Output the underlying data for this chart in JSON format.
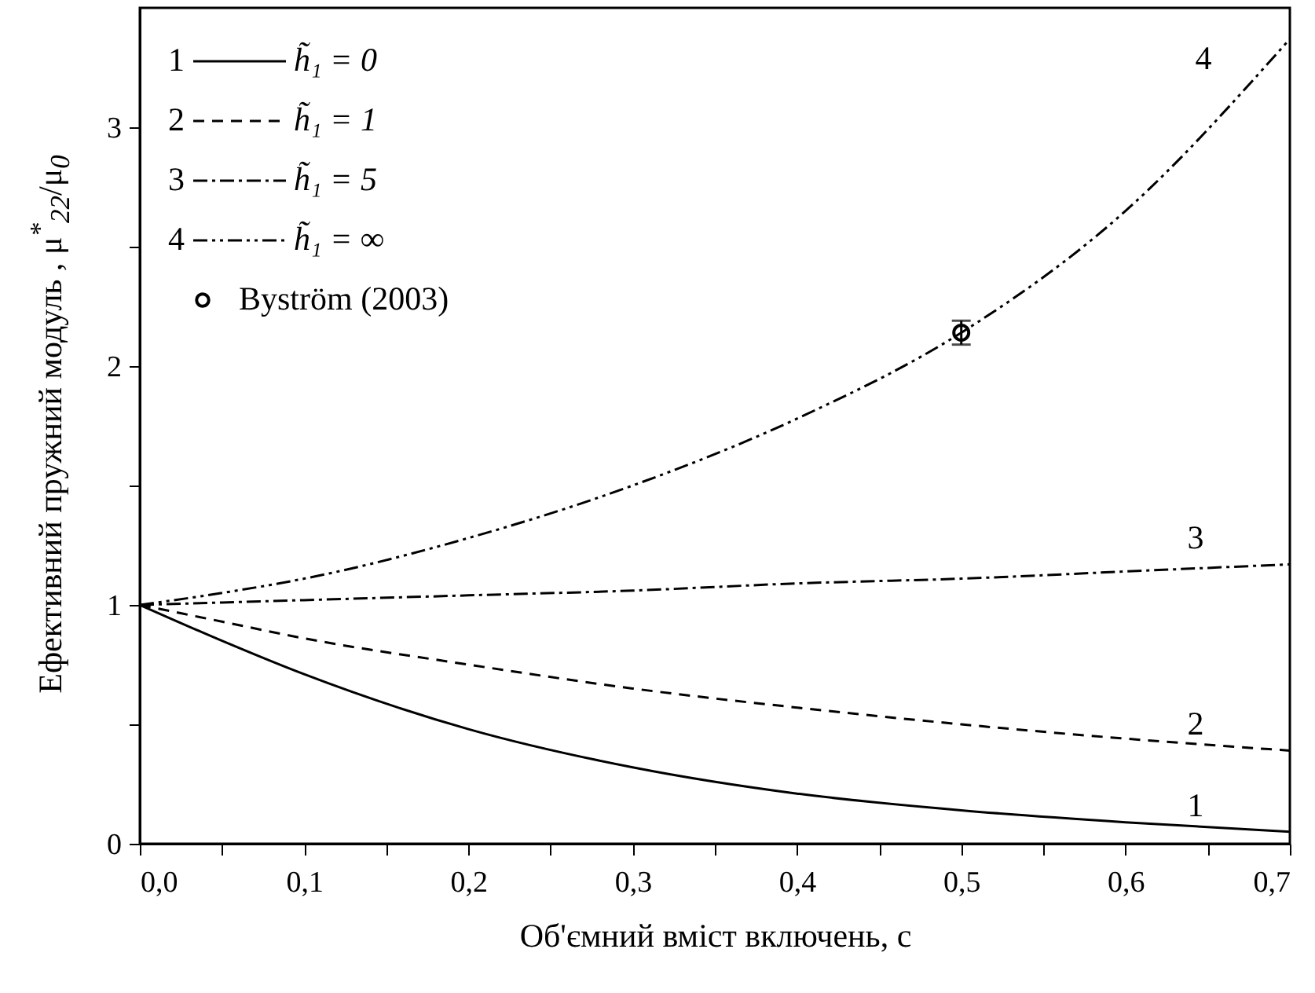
{
  "chart_data": {
    "type": "line",
    "xlabel": "Об'ємний вміст включень, c",
    "ylabel": "Ефективний пружний модуль , μ$^{*}$$_{22}$/μ$_{0}$",
    "x": [
      0,
      0.05,
      0.1,
      0.2,
      0.3,
      0.4,
      0.5,
      0.6,
      0.7
    ],
    "series": [
      {
        "name": "h̃₁ = 0",
        "color": "#000000",
        "line_style": "solid",
        "values": [
          1,
          0.85,
          0.71,
          0.48,
          0.32,
          0.21,
          0.14,
          0.09,
          0.05
        ]
      },
      {
        "name": "h̃₁ = 1",
        "color": "#000000",
        "line_style": "dashed",
        "values": [
          1,
          0.93,
          0.86,
          0.75,
          0.65,
          0.57,
          0.5,
          0.44,
          0.39
        ]
      },
      {
        "name": "h̃₁ = 5",
        "color": "#000000",
        "line_style": "dashdot",
        "values": [
          1,
          1.01,
          1.02,
          1.04,
          1.06,
          1.09,
          1.11,
          1.14,
          1.17
        ]
      },
      {
        "name": "h̃₁ = ∞",
        "color": "#000000",
        "line_style": "dashdotdot",
        "values": [
          1,
          1.05,
          1.11,
          1.28,
          1.5,
          1.78,
          2.14,
          2.65,
          3.37
        ]
      },
      {
        "name": "Byström (2003)",
        "type": "scatter",
        "marker": "circle",
        "color": "#000000",
        "x": [
          0.5
        ],
        "values": [
          2.14
        ],
        "errors": [
          0.05
        ]
      }
    ],
    "annotations": [
      "1",
      "2",
      "3",
      "4"
    ],
    "xlim": [
      0,
      0.7
    ],
    "xticks": [
      {
        "value": 0,
        "label": "0,0"
      },
      {
        "value": 0.05,
        "label": null
      },
      {
        "value": 0.1,
        "label": "0,1"
      },
      {
        "value": 0.15,
        "label": null
      },
      {
        "value": 0.2,
        "label": "0,2"
      },
      {
        "value": 0.25,
        "label": null
      },
      {
        "value": 0.3,
        "label": "0,3"
      },
      {
        "value": 0.35,
        "label": null
      },
      {
        "value": 0.4,
        "label": "0,4"
      },
      {
        "value": 0.45,
        "label": null
      },
      {
        "value": 0.5,
        "label": "0,5"
      },
      {
        "value": 0.55,
        "label": null
      },
      {
        "value": 0.6,
        "label": "0,6"
      },
      {
        "value": 0.65,
        "label": null
      },
      {
        "value": 0.7,
        "label": "0,7"
      }
    ],
    "ylim": [
      0,
      3.5
    ],
    "yticks": [
      0,
      {
        "value": 0.5,
        "label": null
      },
      1,
      {
        "value": 1.5,
        "label": null
      },
      2,
      {
        "value": 2.5,
        "label": null
      },
      3
    ],
    "grid": false,
    "legend": "top left"
  }
}
